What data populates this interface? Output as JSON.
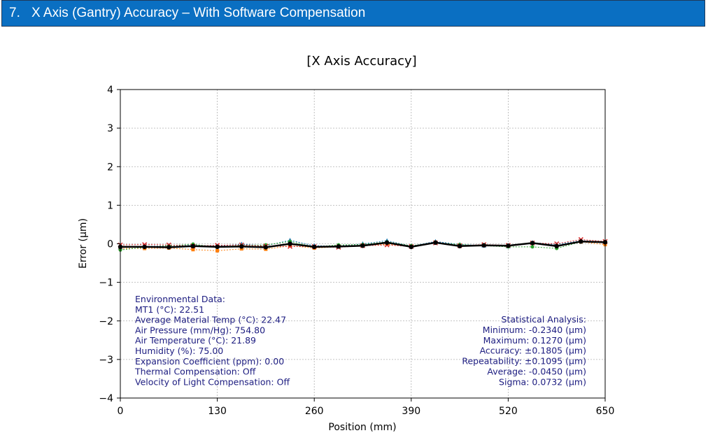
{
  "header": {
    "number": "7.",
    "title": "X Axis (Gantry) Accuracy – With Software Compensation"
  },
  "chart_data": {
    "type": "line",
    "title": "[X Axis Accuracy]",
    "xlabel": "Position (mm)",
    "ylabel": "Error (µm)",
    "xlim": [
      0,
      650
    ],
    "ylim": [
      -4,
      4
    ],
    "xticks": [
      0,
      130,
      260,
      390,
      520,
      650
    ],
    "yticks": [
      4,
      3,
      2,
      1,
      0,
      -1,
      -2,
      -3,
      -4
    ],
    "ytick_labels": [
      "4",
      "3",
      "2",
      "1",
      "0",
      "−1",
      "−2",
      "−3",
      "−4"
    ],
    "grid": true,
    "x": [
      0,
      32.5,
      65,
      97.5,
      130,
      162.5,
      195,
      227.5,
      260,
      292.5,
      325,
      357.5,
      390,
      422.5,
      455,
      487.5,
      520,
      552.5,
      585,
      617.5,
      650
    ],
    "series": [
      {
        "color": "#1f77b4",
        "marker": "^",
        "values": [
          -0.09,
          -0.07,
          -0.05,
          -0.04,
          -0.06,
          -0.01,
          -0.05,
          0.09,
          -0.05,
          -0.06,
          0.0,
          0.08,
          -0.06,
          0.06,
          -0.02,
          -0.04,
          -0.06,
          0.03,
          -0.02,
          0.08,
          0.05
        ]
      },
      {
        "color": "#ff7f0e",
        "marker": "s",
        "values": [
          -0.12,
          -0.12,
          -0.11,
          -0.15,
          -0.18,
          -0.13,
          -0.14,
          -0.05,
          -0.11,
          -0.08,
          -0.05,
          -0.01,
          -0.07,
          0.04,
          -0.06,
          -0.03,
          -0.05,
          0.02,
          -0.06,
          0.05,
          -0.02
        ]
      },
      {
        "color": "#2ca02c",
        "marker": "o",
        "values": [
          -0.16,
          -0.09,
          -0.05,
          -0.01,
          -0.09,
          -0.04,
          -0.03,
          0.06,
          -0.08,
          -0.03,
          -0.02,
          0.05,
          -0.05,
          0.03,
          -0.02,
          -0.05,
          -0.08,
          -0.08,
          -0.12,
          0.05,
          0.05
        ]
      },
      {
        "color": "#d62728",
        "marker": "x",
        "values": [
          -0.03,
          -0.02,
          -0.03,
          -0.06,
          -0.04,
          -0.03,
          -0.06,
          -0.07,
          -0.07,
          -0.09,
          -0.05,
          -0.03,
          -0.07,
          0.02,
          -0.05,
          -0.02,
          -0.04,
          0.02,
          0.0,
          0.11,
          0.06
        ]
      },
      {
        "color": "#000000",
        "marker": "o",
        "bold": true,
        "values": [
          -0.08,
          -0.08,
          -0.09,
          -0.06,
          -0.08,
          -0.07,
          -0.09,
          0.0,
          -0.08,
          -0.07,
          -0.05,
          0.03,
          -0.08,
          0.03,
          -0.06,
          -0.04,
          -0.05,
          0.02,
          -0.06,
          0.06,
          0.04
        ]
      }
    ],
    "environmental": [
      "Environmental Data:",
      "MT1 (°C): 22.51",
      "Average Material Temp (°C): 22.47",
      "Air Pressure (mm/Hg): 754.80",
      "Air Temperature (°C): 21.89",
      "Humidity (%): 75.00",
      "Expansion Coefficient (ppm): 0.00",
      "Thermal Compensation: Off",
      "Velocity of Light Compensation: Off"
    ],
    "statistics": [
      "Statistical Analysis:",
      "Minimum: -0.2340 (µm)",
      "Maximum: 0.1270 (µm)",
      "Accuracy: ±0.1805 (µm)",
      "Repeatability: ±0.1095 (µm)",
      "Average: -0.0450 (µm)",
      "Sigma: 0.0732 (µm)"
    ]
  }
}
